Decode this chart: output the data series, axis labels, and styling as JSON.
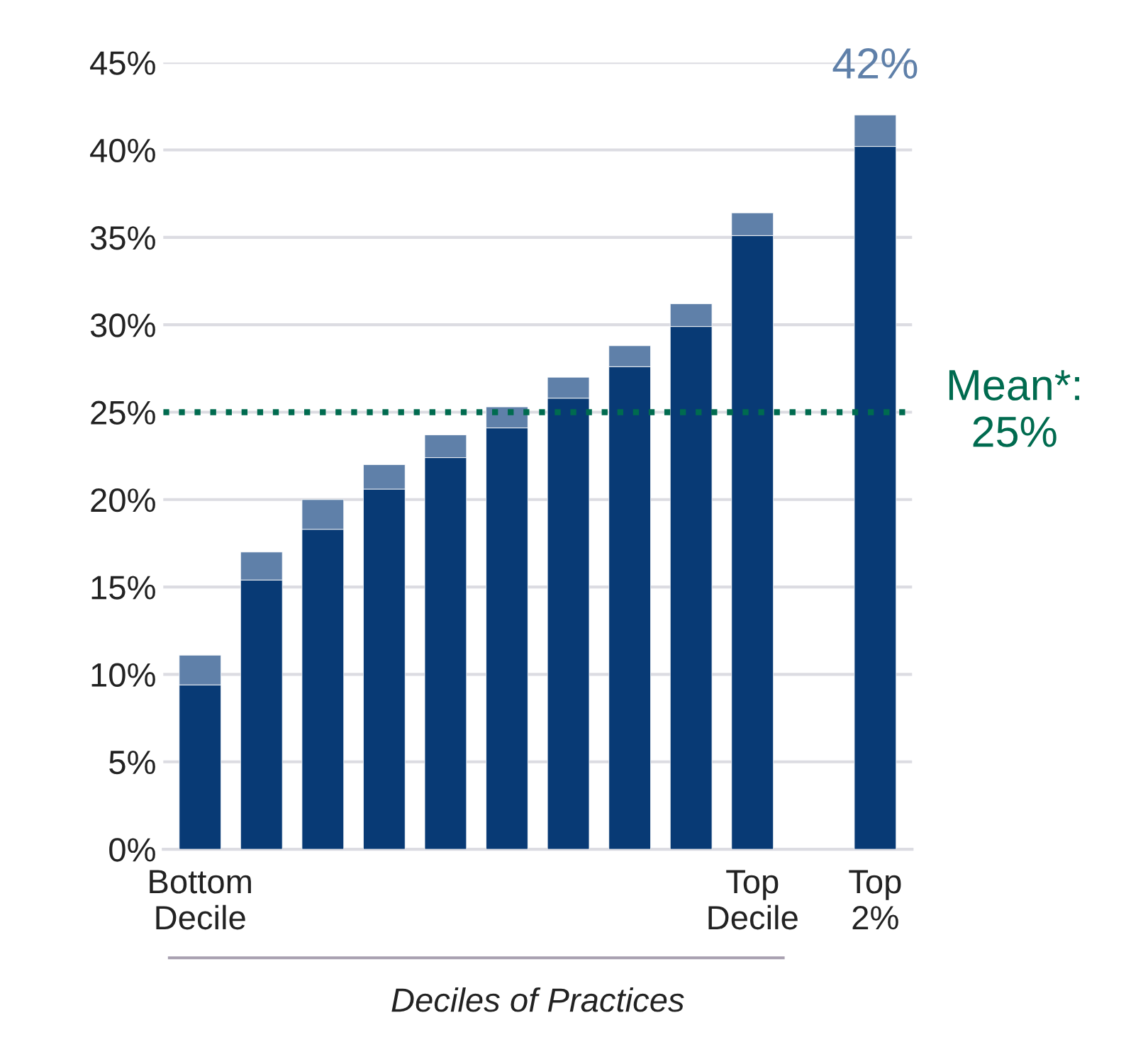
{
  "chart_data": {
    "type": "bar",
    "stacked": true,
    "xlabel": "Deciles of Practices",
    "categories": [
      "Bottom\nDecile",
      null,
      null,
      null,
      null,
      null,
      null,
      null,
      null,
      "Top\nDecile",
      null,
      "Top\n2%"
    ],
    "series": [
      {
        "color": "#083a75",
        "values": [
          9.4,
          15.4,
          18.3,
          20.6,
          22.4,
          24.1,
          25.8,
          27.6,
          29.9,
          35.1,
          null,
          40.2
        ]
      },
      {
        "color": "#5f80a9",
        "values": [
          1.7,
          1.6,
          1.7,
          1.4,
          1.3,
          1.2,
          1.2,
          1.2,
          1.3,
          1.3,
          null,
          1.8
        ]
      }
    ],
    "ylim": [
      0,
      45
    ],
    "yticks": [
      {
        "value": 0,
        "label": "0%"
      },
      {
        "value": 5,
        "label": "5%"
      },
      {
        "value": 10,
        "label": "10%"
      },
      {
        "value": 15,
        "label": "15%"
      },
      {
        "value": 20,
        "label": "20%"
      },
      {
        "value": 25,
        "label": "25%"
      },
      {
        "value": 30,
        "label": "30%"
      },
      {
        "value": 35,
        "label": "35%"
      },
      {
        "value": 40,
        "label": "40%"
      },
      {
        "value": 45,
        "label": "45%"
      }
    ],
    "grid": "y",
    "ref_lines": [
      {
        "axis": "y",
        "value": 25,
        "label": "Mean*:\n25%",
        "color": "#006b4f",
        "line_style": "dotted"
      }
    ],
    "annotations": [
      {
        "text": "42%",
        "x": "Top\n2%",
        "y": 42.0
      }
    ]
  }
}
